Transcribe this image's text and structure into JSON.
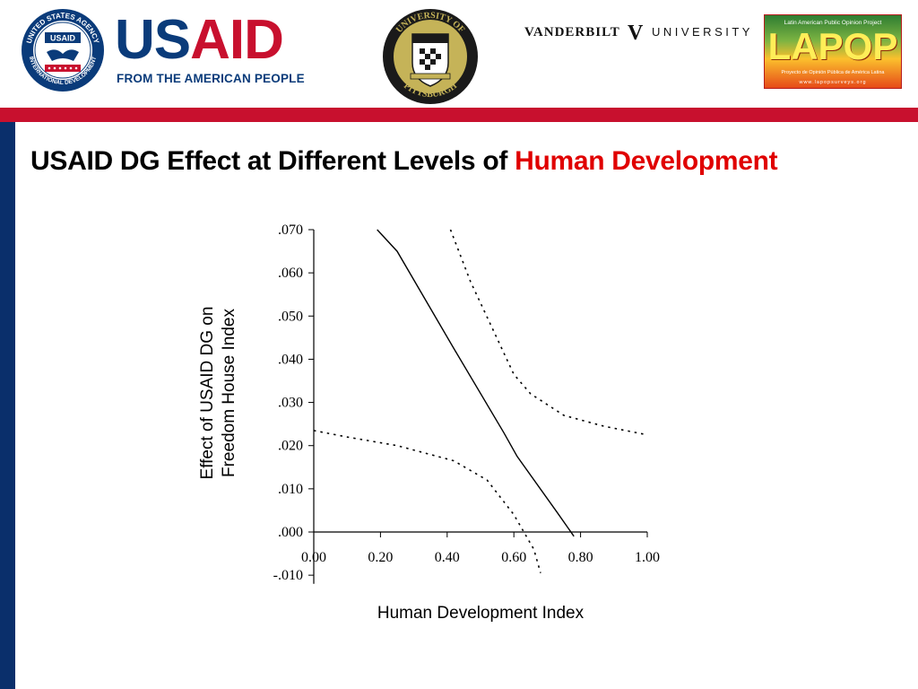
{
  "header": {
    "usaid": {
      "seal_top_text": "UNITED STATES AGENCY",
      "seal_center": "USAID",
      "seal_bottom_text": "INTERNATIONAL DEVELOPMENT",
      "word_us": "US",
      "word_aid": "AID",
      "tagline": "FROM THE AMERICAN PEOPLE"
    },
    "pitt": {
      "ring_top": "UNIVERSITY OF",
      "ring_bottom": "PITTSBURGH"
    },
    "vanderbilt": {
      "left": "VANDERBILT",
      "mark": "V",
      "right": "UNIVERSITY"
    },
    "lapop": {
      "top_text": "Latin American Public Opinion Project",
      "word": "LAPOP",
      "sub_text": "Proyecto de Opinión Pública de América Latina",
      "url": "www.lapopsurveys.org"
    }
  },
  "slide": {
    "title_main": "USAID DG Effect at Different Levels of ",
    "title_highlight": "Human Development"
  },
  "colors": {
    "brand_red": "#c8102e",
    "brand_navy": "#0a2f6b",
    "title_highlight": "#e00000"
  },
  "chart_data": {
    "type": "line",
    "xlabel": "Human Development Index",
    "ylabel": "Effect of USAID DG on Freedom House Index",
    "ylabel_lines": [
      "Effect of USAID DG on",
      "Freedom House Index"
    ],
    "xlim": [
      0,
      1
    ],
    "ylim": [
      -0.012,
      0.07
    ],
    "x_ticks": [
      0,
      0.2,
      0.4,
      0.6,
      0.8,
      1.0
    ],
    "x_tick_labels": [
      "0.00",
      "0.20",
      "0.40",
      "0.60",
      "0.80",
      "1.00"
    ],
    "y_ticks": [
      0.07,
      0.06,
      0.05,
      0.04,
      0.03,
      0.02,
      0.01,
      0.0,
      -0.01
    ],
    "y_tick_labels": [
      ".070",
      ".060",
      ".050",
      ".040",
      ".030",
      ".020",
      ".010",
      ".000",
      "-.010"
    ],
    "grid": false,
    "series": [
      {
        "style": "solid",
        "points": [
          [
            0.19,
            0.07
          ],
          [
            0.25,
            0.065
          ],
          [
            0.42,
            0.0425
          ],
          [
            0.57,
            0.023
          ],
          [
            0.61,
            0.0175
          ],
          [
            0.73,
            0.0045
          ],
          [
            0.78,
            -0.001
          ]
        ]
      },
      {
        "style": "dotted",
        "points": [
          [
            0.41,
            0.07
          ],
          [
            0.47,
            0.058
          ],
          [
            0.6,
            0.0365
          ],
          [
            0.65,
            0.032
          ],
          [
            0.75,
            0.027
          ],
          [
            0.87,
            0.0245
          ],
          [
            1.0,
            0.0225
          ]
        ]
      },
      {
        "style": "dotted",
        "points": [
          [
            0.0,
            0.0235
          ],
          [
            0.1,
            0.022
          ],
          [
            0.25,
            0.02
          ],
          [
            0.42,
            0.0165
          ],
          [
            0.52,
            0.012
          ],
          [
            0.6,
            0.004
          ],
          [
            0.66,
            -0.004
          ],
          [
            0.68,
            -0.0095
          ]
        ]
      }
    ]
  }
}
